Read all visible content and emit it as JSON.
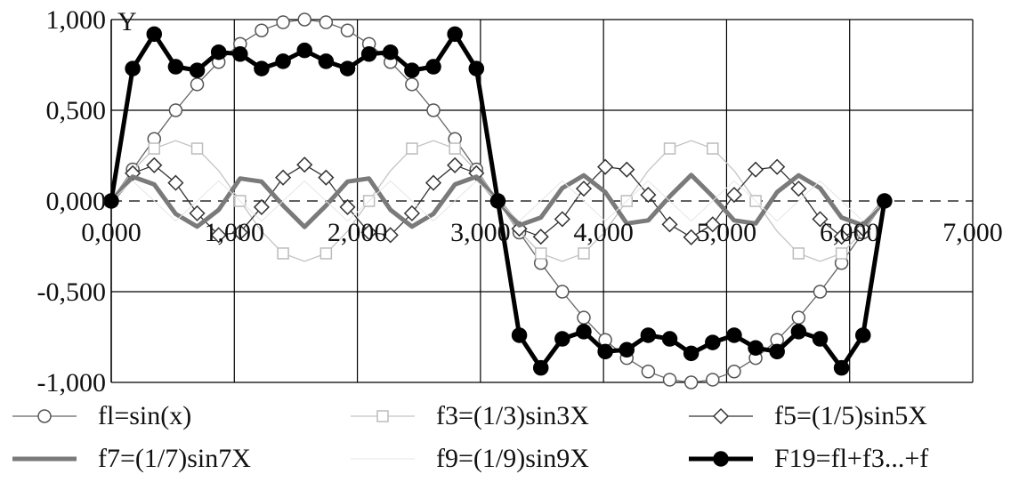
{
  "chart_data": {
    "type": "line",
    "title": "",
    "xlabel": "",
    "ylabel": "Y",
    "xlim": [
      0,
      7
    ],
    "ylim": [
      -1,
      1
    ],
    "x_ticks": [
      "0,000",
      "1,000",
      "2,000",
      "3,000",
      "4,000",
      "5,000",
      "6,000",
      "7,000"
    ],
    "y_ticks": [
      "1,000",
      "0,500",
      "0,000",
      "-0,500",
      "-1,000"
    ],
    "grid": true,
    "legend_position": "bottom",
    "x": [
      0.0,
      0.1745,
      0.3491,
      0.5236,
      0.6981,
      0.8727,
      1.0472,
      1.2217,
      1.3963,
      1.5708,
      1.7453,
      1.9199,
      2.0944,
      2.2689,
      2.4435,
      2.618,
      2.7925,
      2.9671,
      3.1416,
      3.3161,
      3.4907,
      3.6652,
      3.8397,
      4.0143,
      4.1888,
      4.3633,
      4.5379,
      4.7124,
      4.8869,
      5.0615,
      5.236,
      5.4105,
      5.5851,
      5.7596,
      5.9341,
      6.1087,
      6.2832
    ],
    "series": [
      {
        "name": "fl=sin(x)",
        "color": "#666666",
        "values": [
          0,
          0.174,
          0.342,
          0.5,
          0.643,
          0.766,
          0.866,
          0.94,
          0.985,
          1,
          0.985,
          0.94,
          0.866,
          0.766,
          0.643,
          0.5,
          0.342,
          0.174,
          0,
          -0.174,
          -0.342,
          -0.5,
          -0.643,
          -0.766,
          -0.866,
          -0.94,
          -0.985,
          -1,
          -0.985,
          -0.94,
          -0.866,
          -0.766,
          -0.643,
          -0.5,
          -0.342,
          -0.174,
          0
        ]
      },
      {
        "name": "f3=(1/3)sin3X",
        "color": "#c4c4c4",
        "values": [
          0,
          0.167,
          0.289,
          0.333,
          0.289,
          0.167,
          0,
          -0.167,
          -0.289,
          -0.333,
          -0.289,
          -0.167,
          0,
          0.167,
          0.289,
          0.333,
          0.289,
          0.167,
          0,
          -0.167,
          -0.289,
          -0.333,
          -0.289,
          -0.167,
          0,
          0.167,
          0.289,
          0.333,
          0.289,
          0.167,
          0,
          -0.167,
          -0.289,
          -0.333,
          -0.289,
          -0.167,
          0
        ]
      },
      {
        "name": "f5=(1/5)sin5X",
        "color": "#333333",
        "values": [
          0,
          0.153,
          0.197,
          0.1,
          -0.068,
          -0.188,
          -0.173,
          -0.034,
          0.129,
          0.2,
          0.129,
          -0.034,
          -0.173,
          -0.188,
          -0.068,
          0.1,
          0.197,
          0.153,
          0,
          -0.153,
          -0.197,
          -0.1,
          0.068,
          0.188,
          0.173,
          0.034,
          -0.129,
          -0.2,
          -0.129,
          0.034,
          0.173,
          0.188,
          0.068,
          -0.1,
          -0.197,
          -0.153,
          0
        ]
      },
      {
        "name": "f7=(1/7)sin7X",
        "color": "#7a7a7a",
        "values": [
          0,
          0.134,
          0.091,
          -0.071,
          -0.141,
          -0.049,
          0.124,
          0.107,
          -0.025,
          -0.143,
          -0.025,
          0.107,
          0.124,
          -0.049,
          -0.141,
          -0.071,
          0.091,
          0.134,
          0,
          -0.134,
          -0.091,
          0.071,
          0.141,
          0.049,
          -0.124,
          -0.107,
          0.025,
          0.143,
          0.025,
          -0.107,
          -0.124,
          0.049,
          0.141,
          0.071,
          -0.091,
          -0.134,
          0
        ]
      },
      {
        "name": "f9=(1/9)sin9X",
        "color": "#e6e6e6",
        "values": [
          0,
          0.111,
          0,
          -0.111,
          0,
          0.111,
          0,
          -0.111,
          0,
          0.111,
          0,
          -0.111,
          0,
          0.111,
          0,
          -0.111,
          0,
          0.111,
          0,
          -0.111,
          0,
          0.111,
          0,
          -0.111,
          0,
          0.111,
          0,
          -0.111,
          0,
          0.111,
          0,
          -0.111,
          0,
          0.111,
          0,
          -0.111,
          0
        ]
      },
      {
        "name": "F19=fl+f3...+f",
        "color": "#000000",
        "values": [
          0,
          0.73,
          0.92,
          0.74,
          0.72,
          0.82,
          0.81,
          0.73,
          0.77,
          0.83,
          0.77,
          0.73,
          0.81,
          0.82,
          0.72,
          0.74,
          0.92,
          0.73,
          0,
          -0.74,
          -0.92,
          -0.76,
          -0.72,
          -0.83,
          -0.82,
          -0.74,
          -0.76,
          -0.84,
          -0.78,
          -0.74,
          -0.81,
          -0.83,
          -0.72,
          -0.76,
          -0.92,
          -0.74,
          0
        ]
      }
    ]
  }
}
